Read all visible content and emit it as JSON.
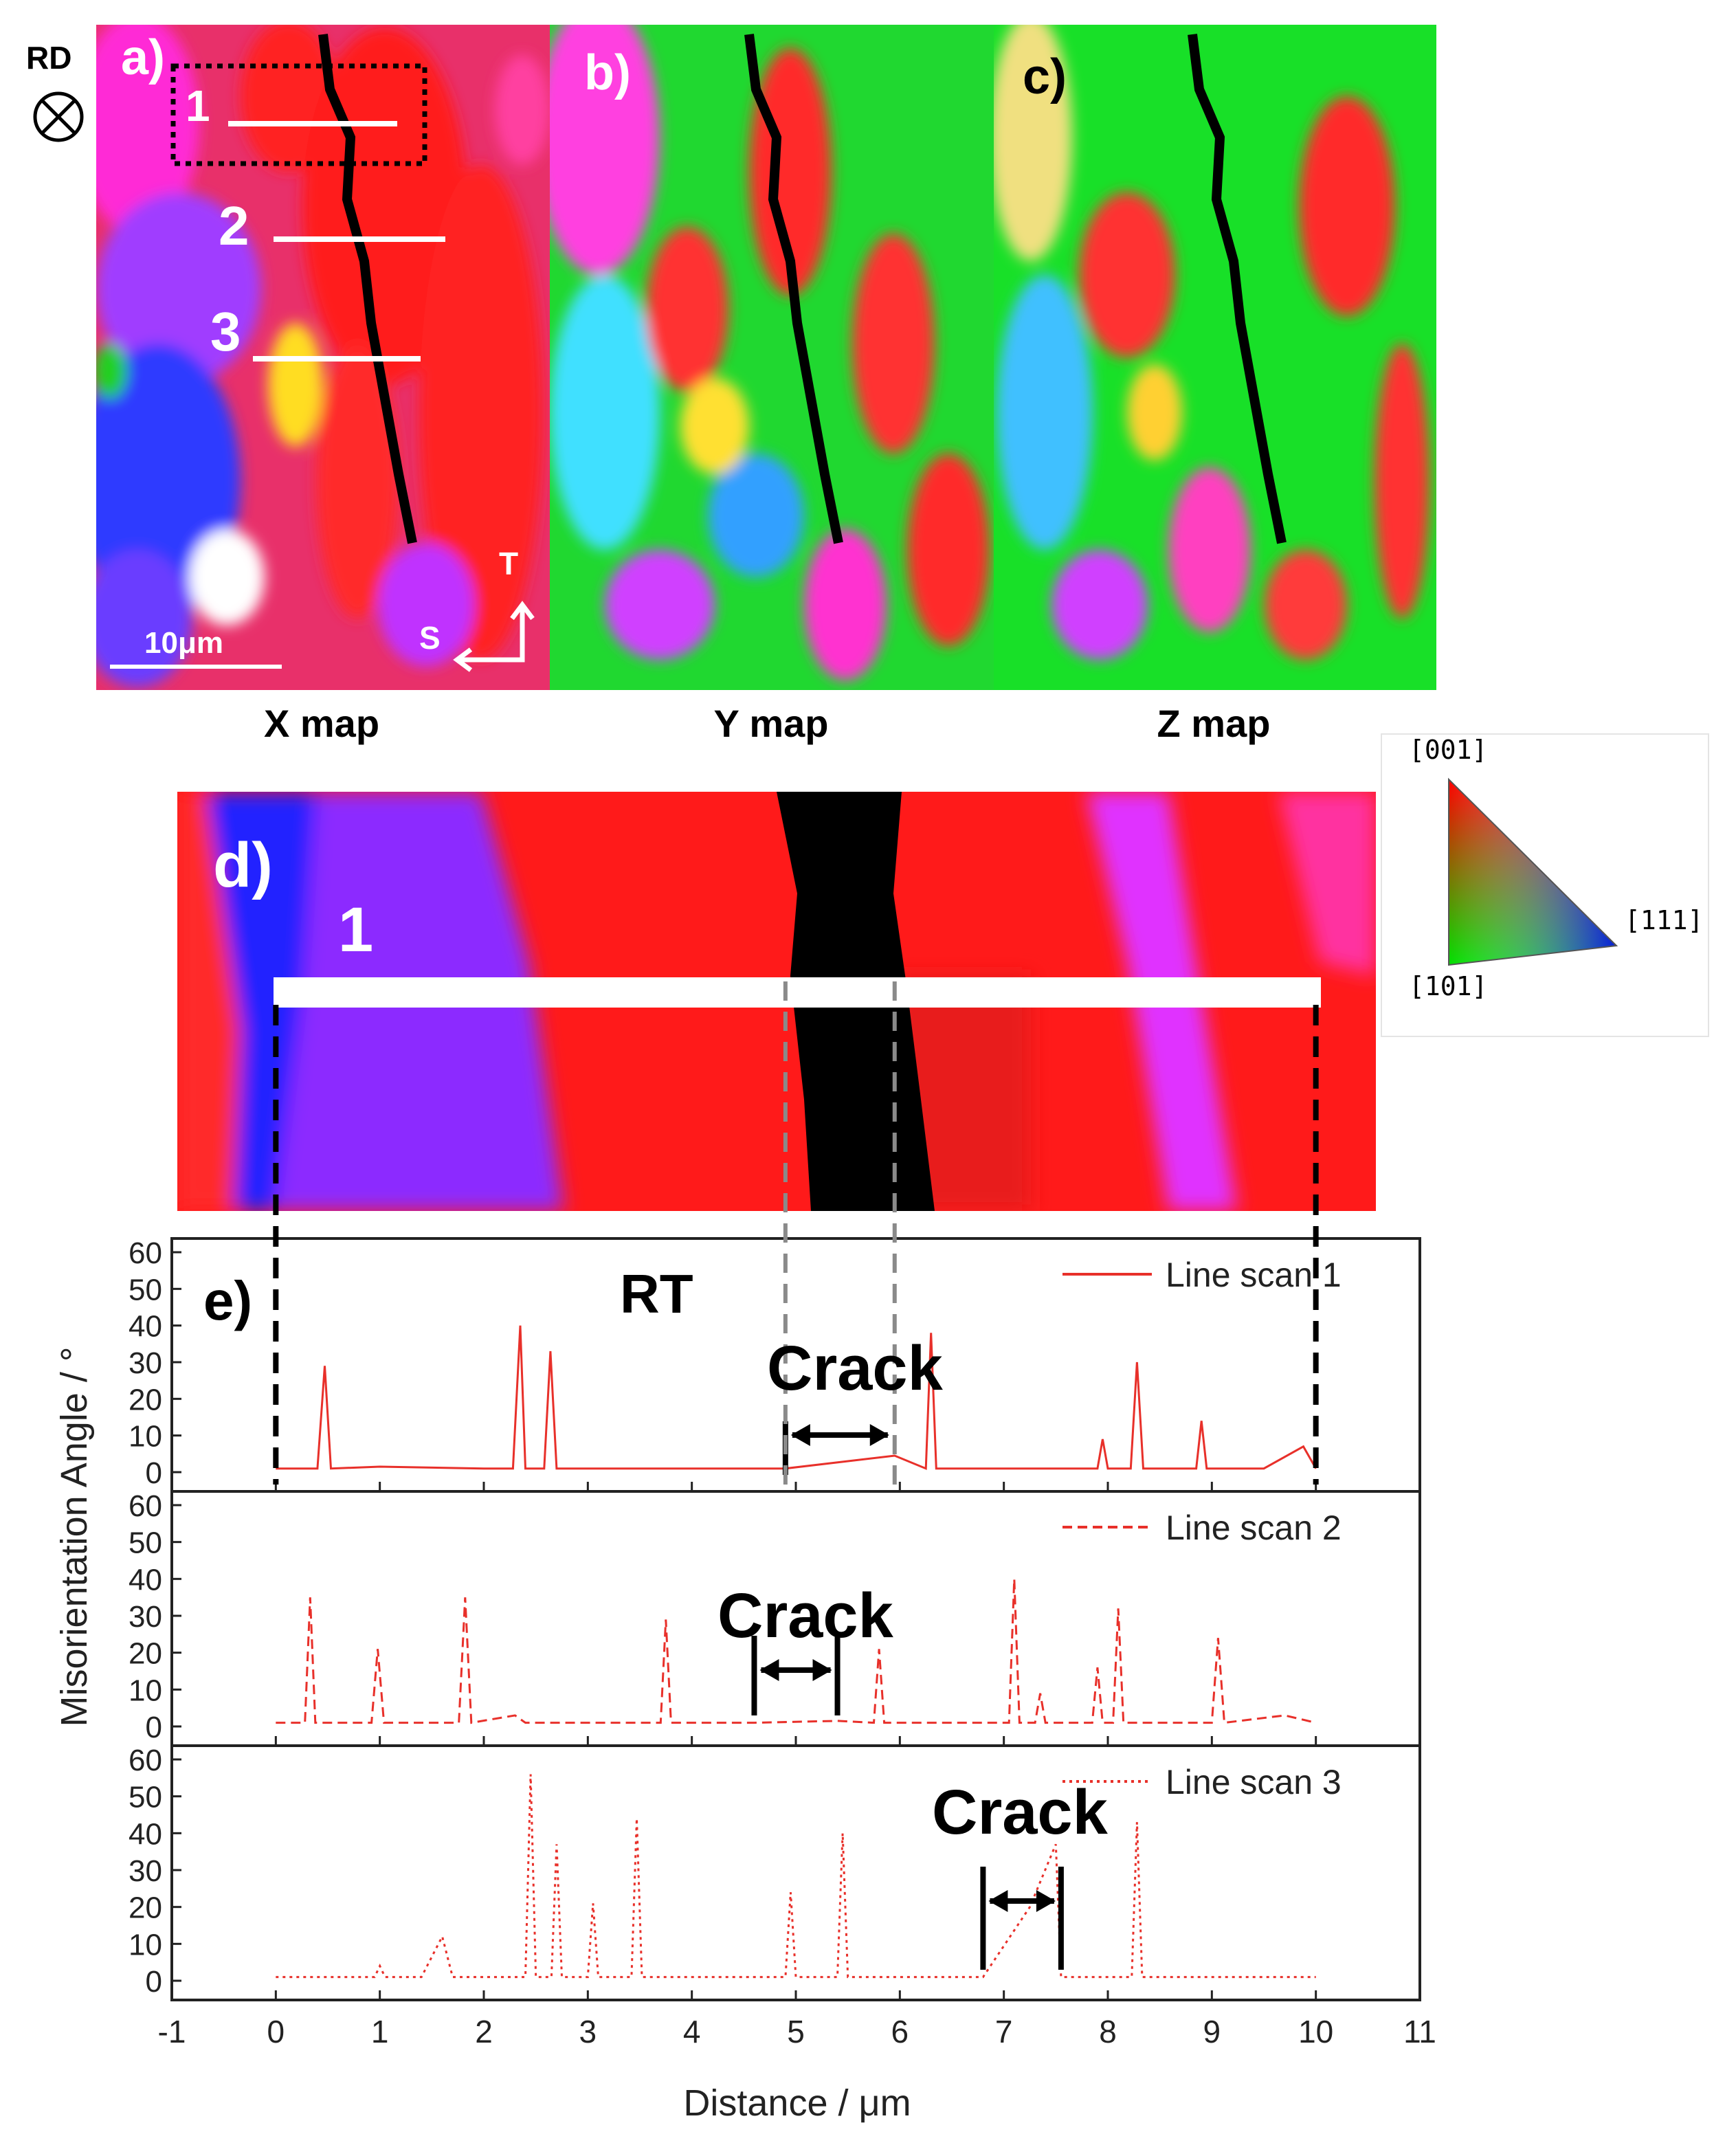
{
  "orientation": {
    "rd_label": "RD"
  },
  "maps": [
    {
      "panel": "a)",
      "caption": "X map"
    },
    {
      "panel": "b)",
      "caption": "Y map"
    },
    {
      "panel": "c)",
      "caption": "Z map"
    }
  ],
  "panel_a": {
    "scan_markers": [
      "1",
      "2",
      "3"
    ],
    "scale_bar": "10μm",
    "axis_t": "T",
    "axis_s": "S"
  },
  "panel_d": {
    "label": "d)",
    "scan_marker": "1"
  },
  "ipf_key": {
    "top": "[001]",
    "right": "[111]",
    "bottom": "[101]"
  },
  "panel_e": {
    "label": "e)",
    "condition": "RT",
    "crack_label": "Crack"
  },
  "colors": {
    "line": "#e8302a",
    "axis": "#222222",
    "crack_arrow": "#000000",
    "dash_black": "#000000",
    "dash_gray": "#8a8a8a"
  },
  "chart_data": {
    "type": "line",
    "xlabel": "Distance / μm",
    "ylabel": "Misorientation Angle / °",
    "xlim": [
      -1,
      11
    ],
    "ylim": [
      0,
      65
    ],
    "x_ticks": [
      -1,
      0,
      1,
      2,
      3,
      4,
      5,
      6,
      7,
      8,
      9,
      10,
      11
    ],
    "y_ticks": [
      0,
      10,
      20,
      30,
      40,
      50,
      60
    ],
    "series": [
      {
        "name": "Line scan 1",
        "style": "solid",
        "points": [
          [
            0,
            1
          ],
          [
            0.4,
            1
          ],
          [
            0.47,
            29
          ],
          [
            0.53,
            1
          ],
          [
            1,
            1.5
          ],
          [
            2,
            1
          ],
          [
            2.28,
            1
          ],
          [
            2.35,
            40
          ],
          [
            2.4,
            1
          ],
          [
            2.58,
            1
          ],
          [
            2.64,
            33
          ],
          [
            2.7,
            1
          ],
          [
            3.5,
            1
          ],
          [
            4.5,
            1
          ],
          [
            4.9,
            1
          ],
          [
            5.95,
            4.5
          ],
          [
            6.25,
            1
          ],
          [
            6.3,
            38
          ],
          [
            6.35,
            1
          ],
          [
            7,
            1
          ],
          [
            7.9,
            1
          ],
          [
            7.95,
            9
          ],
          [
            8,
            1
          ],
          [
            8.22,
            1
          ],
          [
            8.28,
            30
          ],
          [
            8.34,
            1
          ],
          [
            8.85,
            1
          ],
          [
            8.9,
            14
          ],
          [
            8.95,
            1
          ],
          [
            9.5,
            1
          ],
          [
            9.88,
            7
          ],
          [
            10,
            1
          ]
        ],
        "crack": [
          4.9,
          5.95
        ]
      },
      {
        "name": "Line scan 2",
        "style": "dashed",
        "points": [
          [
            0,
            1
          ],
          [
            0.28,
            1
          ],
          [
            0.33,
            35
          ],
          [
            0.38,
            1
          ],
          [
            0.92,
            1
          ],
          [
            0.98,
            21
          ],
          [
            1.04,
            1
          ],
          [
            1.76,
            1
          ],
          [
            1.82,
            35
          ],
          [
            1.88,
            1
          ],
          [
            2.3,
            3
          ],
          [
            2.4,
            1
          ],
          [
            3,
            1
          ],
          [
            3.7,
            1
          ],
          [
            3.75,
            29
          ],
          [
            3.8,
            1
          ],
          [
            4.6,
            1
          ],
          [
            5.4,
            1.5
          ],
          [
            5.75,
            1
          ],
          [
            5.8,
            21
          ],
          [
            5.85,
            1
          ],
          [
            7.05,
            1
          ],
          [
            7.1,
            40
          ],
          [
            7.15,
            1
          ],
          [
            7.3,
            1
          ],
          [
            7.35,
            9
          ],
          [
            7.4,
            1
          ],
          [
            7.85,
            1
          ],
          [
            7.9,
            16
          ],
          [
            7.95,
            1
          ],
          [
            8.05,
            1
          ],
          [
            8.1,
            32
          ],
          [
            8.15,
            1
          ],
          [
            9,
            1
          ],
          [
            9.06,
            24
          ],
          [
            9.12,
            1
          ],
          [
            9.7,
            3
          ],
          [
            10,
            1
          ]
        ],
        "crack": [
          4.6,
          5.4
        ]
      },
      {
        "name": "Line scan 3",
        "style": "dotted",
        "points": [
          [
            0,
            1
          ],
          [
            0.95,
            1
          ],
          [
            1,
            4
          ],
          [
            1.05,
            1
          ],
          [
            1.4,
            1
          ],
          [
            1.6,
            12
          ],
          [
            1.7,
            1
          ],
          [
            2.4,
            1
          ],
          [
            2.45,
            56
          ],
          [
            2.5,
            1
          ],
          [
            2.65,
            1
          ],
          [
            2.7,
            37
          ],
          [
            2.75,
            1
          ],
          [
            3,
            1
          ],
          [
            3.05,
            21
          ],
          [
            3.1,
            1
          ],
          [
            3.42,
            1
          ],
          [
            3.47,
            44
          ],
          [
            3.52,
            1
          ],
          [
            4.9,
            1
          ],
          [
            4.95,
            24
          ],
          [
            5,
            1
          ],
          [
            5.4,
            1
          ],
          [
            5.45,
            40
          ],
          [
            5.5,
            1
          ],
          [
            6.8,
            1
          ],
          [
            7.25,
            20
          ],
          [
            7.5,
            37
          ],
          [
            7.55,
            1
          ],
          [
            8.23,
            1
          ],
          [
            8.28,
            43
          ],
          [
            8.33,
            1
          ],
          [
            9,
            1
          ],
          [
            10,
            1
          ]
        ],
        "crack": [
          6.8,
          7.55
        ]
      }
    ],
    "reference_lines": {
      "scan_extent": [
        0,
        10
      ],
      "crack_bounds_scan1": [
        4.9,
        5.95
      ]
    }
  }
}
